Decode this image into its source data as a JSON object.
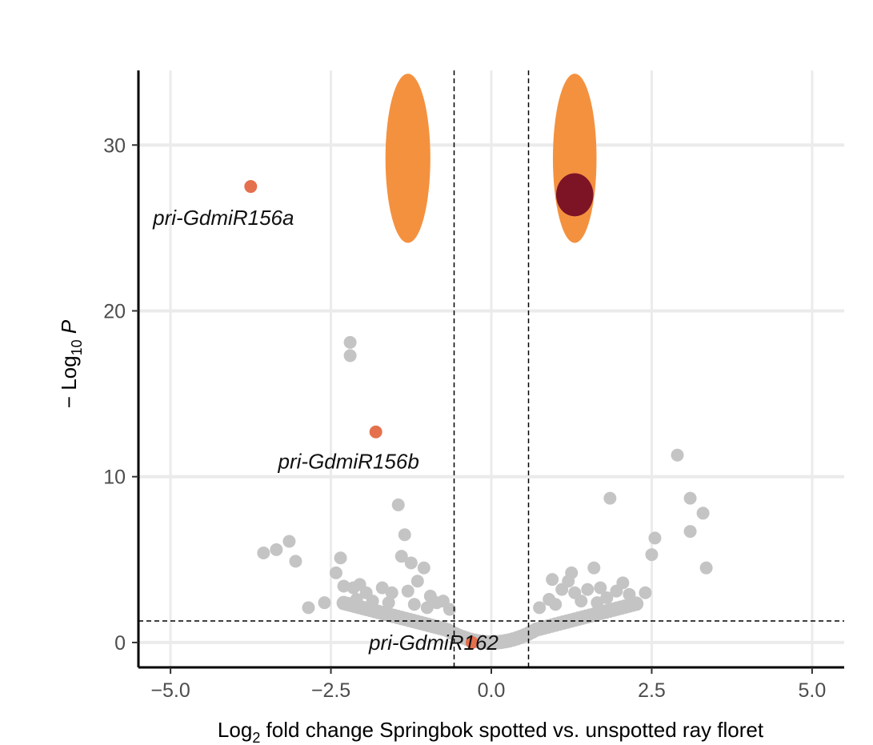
{
  "chart_data": {
    "type": "scatter",
    "subtype": "volcano",
    "xlabel": {
      "prefix": "Log",
      "sub": "2",
      "suffix": " fold change Springbok spotted vs. unspotted ray floret"
    },
    "ylabel": {
      "prefix": "− Log",
      "sub": "10",
      "suffix": " P"
    },
    "xlim": [
      -5.5,
      5.5
    ],
    "ylim": [
      -1.5,
      34.5
    ],
    "x_ticks": [
      -5,
      -2.5,
      0,
      2.5,
      5
    ],
    "x_tick_labels": [
      "−5.0",
      "−2.5",
      "0.0",
      "2.5",
      "5.0"
    ],
    "y_ticks": [
      0,
      10,
      20,
      30
    ],
    "y_tick_labels": [
      "0",
      "10",
      "20",
      "30"
    ],
    "grid": true,
    "fold_change_cutoffs": [
      -0.58,
      0.58
    ],
    "pvalue_cutoff": 1.3,
    "colors": {
      "background_points": "#c4c4c4",
      "highlight_points": "#e5704e",
      "clusters": "#f4913f",
      "dense_cluster": "#7c1426",
      "grid": "#ebebeb",
      "axis": "#000000"
    },
    "clusters": [
      {
        "name": "down-regulated cluster",
        "x": -1.3,
        "y": 29.2,
        "x_radius": 0.35,
        "y_radius": 5.1,
        "color": "#f4913f"
      },
      {
        "name": "up-regulated cluster",
        "x": 1.3,
        "y": 29.2,
        "x_radius": 0.34,
        "y_radius": 5.1,
        "color": "#f4913f"
      },
      {
        "name": "up-regulated dense core",
        "x": 1.3,
        "y": 27.0,
        "x_radius": 0.29,
        "y_radius": 1.3,
        "color": "#7c1426"
      }
    ],
    "highlighted": [
      {
        "label": "pri-GdmiR156a",
        "x": -3.75,
        "y": 27.5
      },
      {
        "label": "pri-GdmiR156b",
        "x": -1.8,
        "y": 12.7
      },
      {
        "label": "pri-GdmiR162",
        "x": -0.3,
        "y": 0.0
      }
    ],
    "points": [
      [
        -2.2,
        18.1
      ],
      [
        -2.2,
        17.3
      ],
      [
        -1.45,
        8.3
      ],
      [
        -1.35,
        6.5
      ],
      [
        -3.55,
        5.4
      ],
      [
        -3.35,
        5.6
      ],
      [
        -3.15,
        6.1
      ],
      [
        -3.05,
        4.9
      ],
      [
        -2.35,
        5.1
      ],
      [
        -2.42,
        4.2
      ],
      [
        -1.4,
        5.2
      ],
      [
        -1.25,
        4.8
      ],
      [
        -1.05,
        4.5
      ],
      [
        -2.05,
        3.5
      ],
      [
        -2.15,
        3.3
      ],
      [
        -2.3,
        3.4
      ],
      [
        -1.95,
        3.0
      ],
      [
        -1.7,
        3.3
      ],
      [
        -1.55,
        3.0
      ],
      [
        -1.3,
        3.1
      ],
      [
        -1.15,
        3.7
      ],
      [
        -0.95,
        2.8
      ],
      [
        -0.75,
        2.5
      ],
      [
        -2.1,
        2.6
      ],
      [
        -1.85,
        2.5
      ],
      [
        -1.6,
        2.4
      ],
      [
        -1.2,
        2.3
      ],
      [
        -1.0,
        2.1
      ],
      [
        -0.85,
        2.4
      ],
      [
        -0.65,
        2.0
      ],
      [
        -2.6,
        2.4
      ],
      [
        -2.85,
        2.1
      ],
      [
        2.9,
        11.3
      ],
      [
        3.1,
        8.7
      ],
      [
        3.3,
        7.8
      ],
      [
        3.1,
        6.7
      ],
      [
        3.35,
        4.5
      ],
      [
        2.55,
        6.3
      ],
      [
        2.5,
        5.3
      ],
      [
        1.85,
        8.7
      ],
      [
        1.6,
        4.5
      ],
      [
        1.25,
        4.2
      ],
      [
        0.95,
        3.8
      ],
      [
        1.2,
        3.7
      ],
      [
        1.1,
        3.2
      ],
      [
        1.3,
        3.0
      ],
      [
        1.5,
        3.2
      ],
      [
        1.7,
        3.3
      ],
      [
        1.95,
        3.1
      ],
      [
        2.05,
        3.6
      ],
      [
        2.15,
        2.9
      ],
      [
        0.9,
        2.6
      ],
      [
        1.0,
        2.3
      ],
      [
        1.4,
        2.5
      ],
      [
        1.65,
        2.4
      ],
      [
        1.8,
        2.7
      ],
      [
        0.75,
        2.1
      ],
      [
        2.4,
        3.0
      ]
    ]
  }
}
